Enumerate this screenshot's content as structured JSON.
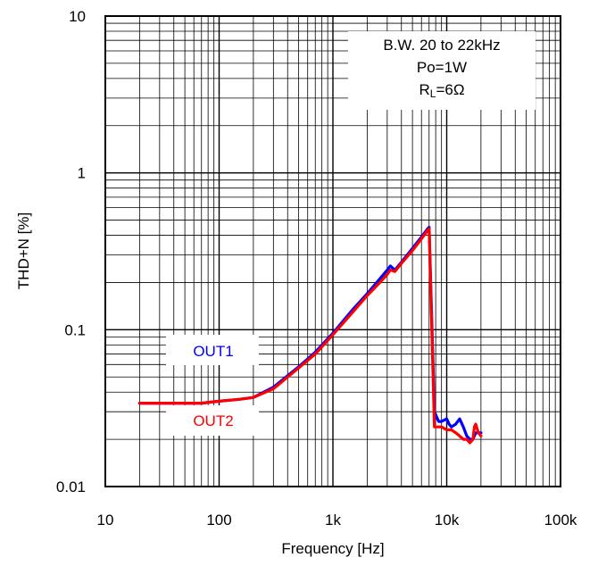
{
  "chart_data": {
    "type": "line",
    "title": "",
    "xlabel": "Frequency [Hz]",
    "ylabel": "THD+N [%]",
    "xscale": "log",
    "yscale": "log",
    "xlim": [
      10,
      100000
    ],
    "ylim": [
      0.01,
      10
    ],
    "grid": true,
    "x_tick_labels": [
      {
        "value": 10,
        "label": "10"
      },
      {
        "value": 100,
        "label": "100"
      },
      {
        "value": 1000,
        "label": "1k"
      },
      {
        "value": 10000,
        "label": "10k"
      },
      {
        "value": 100000,
        "label": "100k"
      }
    ],
    "y_tick_labels": [
      {
        "value": 0.01,
        "label": "0.01"
      },
      {
        "value": 0.1,
        "label": "0.1"
      },
      {
        "value": 1,
        "label": "1"
      },
      {
        "value": 10,
        "label": "10"
      }
    ],
    "annotation": {
      "line1": "B.W. 20 to 22kHz",
      "line2": "Po=1W",
      "line3_main": "R",
      "line3_sub": "L",
      "line3_rest": "=6Ω",
      "placement": "top-right"
    },
    "series": [
      {
        "name": "OUT1",
        "color": "#0000ff",
        "x": [
          20,
          30,
          50,
          70,
          100,
          150,
          200,
          300,
          500,
          700,
          1000,
          1500,
          2000,
          2500,
          3000,
          3200,
          3500,
          4000,
          5000,
          6000,
          6800,
          7000,
          7800,
          8500,
          9000,
          10000,
          10500,
          11000,
          12000,
          13000,
          14000,
          15000,
          16000,
          17000,
          18000,
          20000
        ],
        "y": [
          0.034,
          0.034,
          0.034,
          0.034,
          0.035,
          0.036,
          0.037,
          0.043,
          0.058,
          0.072,
          0.095,
          0.135,
          0.17,
          0.205,
          0.24,
          0.255,
          0.24,
          0.27,
          0.33,
          0.39,
          0.44,
          0.45,
          0.03,
          0.026,
          0.026,
          0.027,
          0.025,
          0.024,
          0.025,
          0.027,
          0.024,
          0.021,
          0.02,
          0.02,
          0.022,
          0.022
        ]
      },
      {
        "name": "OUT2",
        "color": "#ff0000",
        "x": [
          20,
          30,
          50,
          70,
          100,
          150,
          200,
          300,
          500,
          700,
          1000,
          1500,
          2000,
          2500,
          3000,
          3200,
          3500,
          4000,
          5000,
          6000,
          6800,
          7000,
          7800,
          8500,
          9000,
          10000,
          11000,
          12000,
          13000,
          14000,
          15000,
          16000,
          17000,
          17500,
          18000,
          19000,
          20000
        ],
        "y": [
          0.034,
          0.034,
          0.034,
          0.034,
          0.035,
          0.036,
          0.037,
          0.042,
          0.057,
          0.07,
          0.093,
          0.13,
          0.165,
          0.195,
          0.225,
          0.24,
          0.235,
          0.265,
          0.32,
          0.38,
          0.43,
          0.44,
          0.024,
          0.024,
          0.024,
          0.023,
          0.023,
          0.022,
          0.021,
          0.02,
          0.02,
          0.019,
          0.02,
          0.024,
          0.025,
          0.022,
          0.021
        ]
      }
    ],
    "series_labels": [
      {
        "name": "OUT1",
        "color": "#0000ff"
      },
      {
        "name": "OUT2",
        "color": "#ff0000"
      }
    ]
  }
}
